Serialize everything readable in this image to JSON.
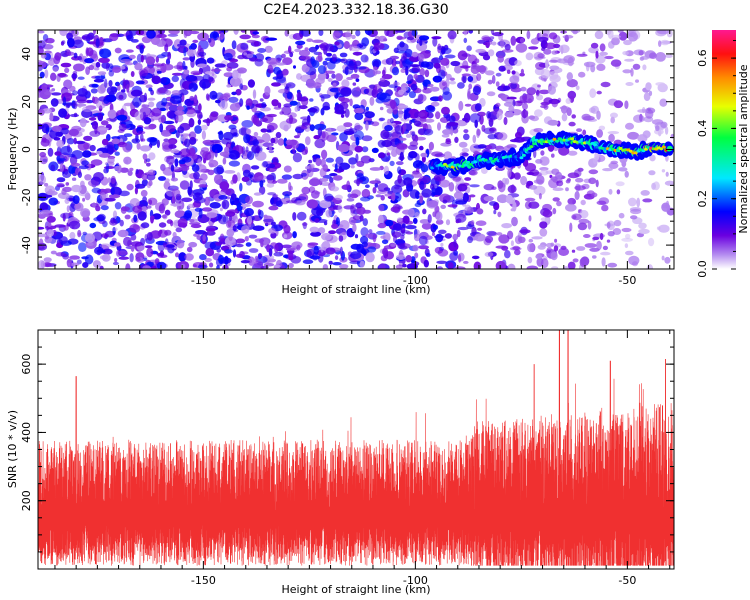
{
  "title": "C2E4.2023.332.18.36.G30",
  "chart_data": [
    {
      "type": "heatmap",
      "xlabel": "Height of straight line (km)",
      "ylabel": "Frequency (Hz)",
      "xlim": [
        -189,
        -39
      ],
      "ylim": [
        -50,
        50
      ],
      "x_ticks": [
        -150,
        -100,
        -50
      ],
      "y_ticks": [
        -40,
        -20,
        0,
        20,
        40
      ],
      "colorbar": {
        "label": "Normalized spectral amplitude",
        "range": [
          0,
          0.68
        ],
        "ticks": [
          0.0,
          0.2,
          0.4,
          0.6
        ],
        "colormap": "rainbow (white-violet-blue-cyan-green-yellow-orange-red-pink)"
      },
      "noise_level": 0.08,
      "signal_trace": {
        "description": "high-amplitude narrow band centred near 0 Hz",
        "x": [
          -96,
          -90,
          -85,
          -80,
          -75,
          -72,
          -68,
          -63,
          -58,
          -53,
          -48,
          -44,
          -40
        ],
        "frequency": [
          -7,
          -7,
          -5,
          -4,
          -3,
          3,
          4,
          4,
          2,
          0,
          -1,
          1,
          0
        ],
        "amplitude": [
          0.25,
          0.5,
          0.35,
          0.3,
          0.25,
          0.4,
          0.45,
          0.45,
          0.4,
          0.45,
          0.5,
          0.6,
          0.55
        ]
      }
    },
    {
      "type": "line",
      "xlabel": "Height of straight line (km)",
      "ylabel": "SNR (10 * v/v)",
      "xlim": [
        -189,
        -39
      ],
      "ylim": [
        0,
        700
      ],
      "x_ticks": [
        -150,
        -100,
        -50
      ],
      "y_ticks": [
        200,
        400,
        600
      ],
      "color": "#f03030",
      "baseline": 170,
      "typical_max": 430,
      "notable_peaks": [
        {
          "x": -180,
          "y": 565
        },
        {
          "x": -72,
          "y": 600
        },
        {
          "x": -66,
          "y": 700
        },
        {
          "x": -64,
          "y": 700
        },
        {
          "x": -54,
          "y": 610
        },
        {
          "x": -41,
          "y": 615
        }
      ]
    }
  ]
}
